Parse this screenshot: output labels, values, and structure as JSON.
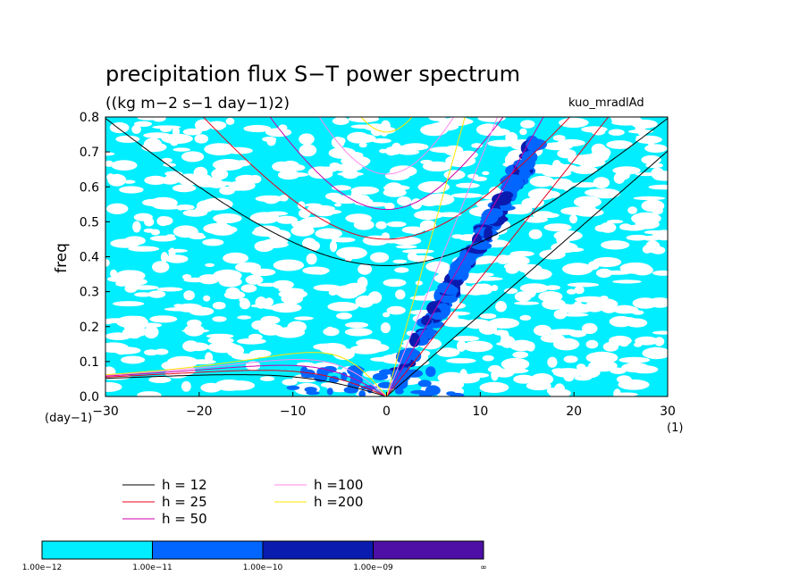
{
  "chart_data": {
    "type": "heatmap",
    "title": "precipitation flux S−T power spectrum",
    "subtitle": "((kg m−2 s−1 day−1)2)",
    "annotation": "kuo_mradlAd",
    "xlabel": "wvn",
    "ylabel": "freq",
    "x_unit": "(1)",
    "y_unit": "(day−1)",
    "xlim": [
      -30,
      30
    ],
    "ylim": [
      0,
      0.8
    ],
    "x_ticks": [
      "−30",
      "−20",
      "−10",
      "0",
      "10",
      "20",
      "30"
    ],
    "y_ticks": [
      "0.0",
      "0.1",
      "0.2",
      "0.3",
      "0.4",
      "0.5",
      "0.6",
      "0.7",
      "0.8"
    ],
    "colorbar": {
      "labels": [
        "1.00e−12",
        "1.00e−11",
        "1.00e−10",
        "1.00e−09",
        "∞"
      ],
      "colors": [
        "#00eeff",
        "#0066ff",
        "#0a1bb0",
        "#4d0fa6"
      ]
    },
    "dispersion_curves": [
      {
        "label": "h = 12",
        "h": 12,
        "color": "#000000"
      },
      {
        "label": "h = 25",
        "h": 25,
        "color": "#e8001a"
      },
      {
        "label": "h = 50",
        "h": 50,
        "color": "#cc00aa"
      },
      {
        "label": "h =100",
        "h": 100,
        "color": "#ff88ee"
      },
      {
        "label": "h =200",
        "h": 200,
        "color": "#ffe600"
      }
    ]
  }
}
